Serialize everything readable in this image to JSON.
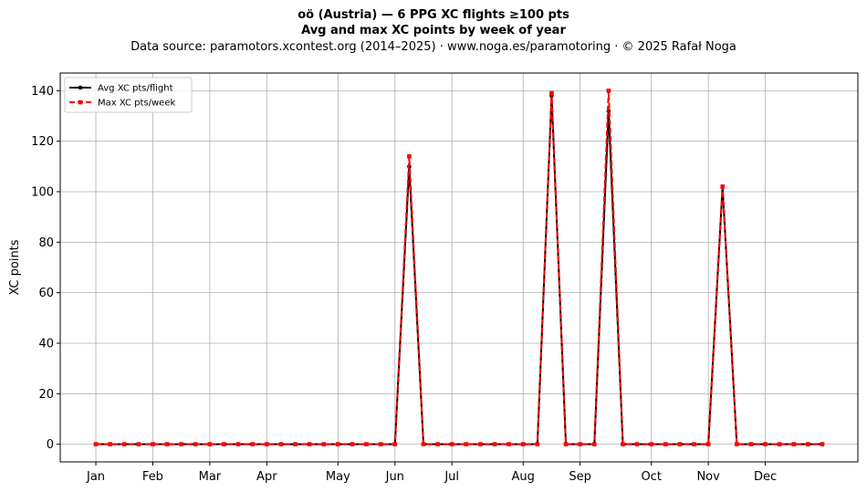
{
  "header": {
    "title_line1": "oö (Austria)  —  6 PPG XC flights ≥100 pts",
    "title_line2": "Avg and max XC points by week of year",
    "source_line": "Data source: paramotors.xcontest.org (2014–2025)  ·  www.noga.es/paramotoring  ·  © 2025 Rafał Noga"
  },
  "chart_data": {
    "type": "line",
    "title": "Avg and max XC points by week of year",
    "xlabel": "",
    "ylabel": "XC points",
    "x": [
      1,
      2,
      3,
      4,
      5,
      6,
      7,
      8,
      9,
      10,
      11,
      12,
      13,
      14,
      15,
      16,
      17,
      18,
      19,
      20,
      21,
      22,
      23,
      24,
      25,
      26,
      27,
      28,
      29,
      30,
      31,
      32,
      33,
      34,
      35,
      36,
      37,
      38,
      39,
      40,
      41,
      42,
      43,
      44,
      45,
      46,
      47,
      48,
      49,
      50,
      51,
      52
    ],
    "xlim": [
      -1.5,
      54.5
    ],
    "ylim": [
      -7,
      147
    ],
    "yticks": [
      0,
      20,
      40,
      60,
      80,
      100,
      120,
      140
    ],
    "xtick_positions": [
      1,
      5,
      9,
      13,
      18,
      22,
      26,
      31,
      35,
      40,
      44,
      48
    ],
    "xtick_labels": [
      "Jan",
      "Feb",
      "Mar",
      "Apr",
      "May",
      "Jun",
      "Jul",
      "Aug",
      "Sep",
      "Oct",
      "Nov",
      "Dec"
    ],
    "grid": true,
    "legend_position": "upper-left",
    "series": [
      {
        "name": "Avg XC pts/flight",
        "color": "#000000",
        "style": "solid",
        "marker": "circle",
        "values": [
          0,
          0,
          0,
          0,
          0,
          0,
          0,
          0,
          0,
          0,
          0,
          0,
          0,
          0,
          0,
          0,
          0,
          0,
          0,
          0,
          0,
          0,
          110,
          0,
          0,
          0,
          0,
          0,
          0,
          0,
          0,
          0,
          138,
          0,
          0,
          0,
          132,
          0,
          0,
          0,
          0,
          0,
          0,
          0,
          102,
          0,
          0,
          0,
          0,
          0,
          0,
          0
        ]
      },
      {
        "name": "Max XC pts/week",
        "color": "#ff0000",
        "style": "dashed",
        "marker": "square",
        "values": [
          0,
          0,
          0,
          0,
          0,
          0,
          0,
          0,
          0,
          0,
          0,
          0,
          0,
          0,
          0,
          0,
          0,
          0,
          0,
          0,
          0,
          0,
          114,
          0,
          0,
          0,
          0,
          0,
          0,
          0,
          0,
          0,
          139,
          0,
          0,
          0,
          140,
          0,
          0,
          0,
          0,
          0,
          0,
          0,
          102,
          0,
          0,
          0,
          0,
          0,
          0,
          0
        ]
      }
    ]
  }
}
